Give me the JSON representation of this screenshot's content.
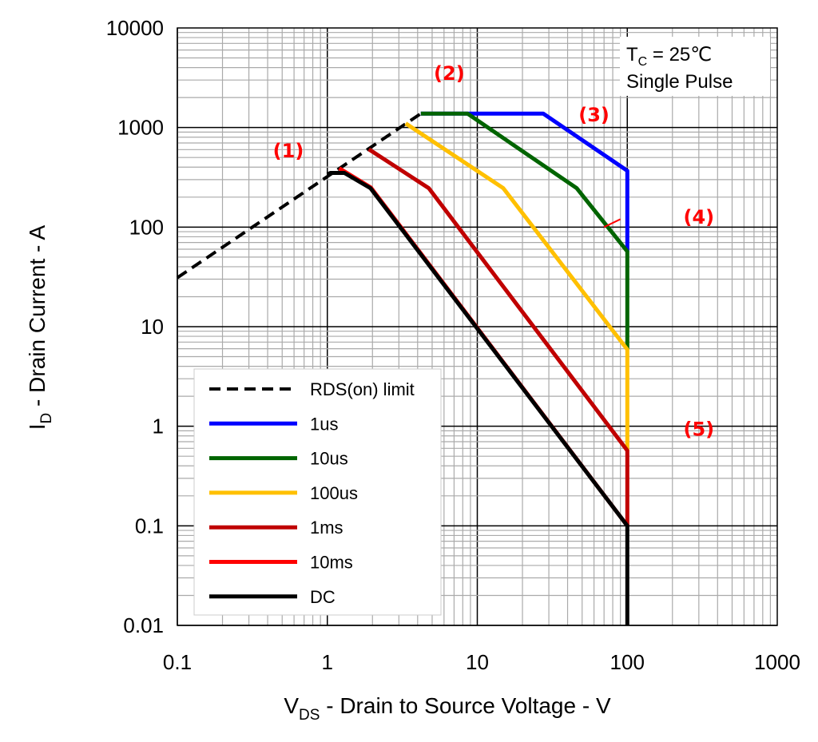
{
  "chart_data": {
    "type": "line",
    "title": "",
    "xlabel": "V_DS - Drain to Source Voltage - V",
    "xlabel_main": "V",
    "xlabel_sub": "DS",
    "xlabel_rest": " - Drain to Source Voltage - V",
    "ylabel_main": "I",
    "ylabel_sub": "D",
    "ylabel_rest": " - Drain Current - A",
    "xscale": "log",
    "yscale": "log",
    "xlim": [
      0.1,
      1000
    ],
    "ylim": [
      0.01,
      10000
    ],
    "xticks": [
      "0.1",
      "1",
      "10",
      "100",
      "1000"
    ],
    "yticks": [
      "0.01",
      "0.1",
      "1",
      "10",
      "100",
      "1000",
      "10000"
    ],
    "grid": true,
    "legend_placement": "bottom-left",
    "conditions": {
      "line1_main": "T",
      "line1_sub": "C",
      "line1_rest": " = 25℃",
      "line2": "Single Pulse"
    },
    "series": [
      {
        "name": "RDS(on) limit",
        "color": "#000000",
        "dashed": true,
        "points": [
          [
            0.1,
            31
          ],
          [
            4.2,
            1380
          ]
        ]
      },
      {
        "name": "1us",
        "color": "#0000ff",
        "points": [
          [
            4.2,
            1380
          ],
          [
            27.5,
            1380
          ],
          [
            100,
            368
          ],
          [
            100,
            57
          ]
        ]
      },
      {
        "name": "10us",
        "color": "#006400",
        "points": [
          [
            4.2,
            1380
          ],
          [
            8.6,
            1380
          ],
          [
            46,
            246
          ],
          [
            100,
            57
          ],
          [
            100,
            5.9
          ]
        ]
      },
      {
        "name": "100us",
        "color": "#ffc000",
        "points": [
          [
            3.33,
            1100
          ],
          [
            14.9,
            246
          ],
          [
            100,
            5.9
          ],
          [
            100,
            0.57
          ]
        ]
      },
      {
        "name": "1ms",
        "color": "#c00000",
        "points": [
          [
            1.89,
            605
          ],
          [
            4.75,
            246
          ],
          [
            100,
            0.57
          ],
          [
            100,
            0.1
          ]
        ]
      },
      {
        "name": "10ms",
        "color": "#ff0000",
        "points": [
          [
            1.2,
            390
          ],
          [
            1.95,
            250
          ],
          [
            100,
            0.1
          ]
        ]
      },
      {
        "name": "DC",
        "color": "#000000",
        "points": [
          [
            1.0,
            337
          ],
          [
            1.05,
            350
          ],
          [
            1.3,
            350
          ],
          [
            1.94,
            246
          ],
          [
            100,
            0.1
          ],
          [
            100,
            0.01
          ]
        ]
      }
    ],
    "annotations": [
      {
        "text": "(1)",
        "x": 0.55,
        "y": 500
      },
      {
        "text": "(2)",
        "x": 6.5,
        "y": 3000
      },
      {
        "text": "(3)",
        "x": 60,
        "y": 1150
      },
      {
        "text": "(4)",
        "x": 300,
        "y": 108
      },
      {
        "text": "(5)",
        "x": 300,
        "y": 0.8
      }
    ],
    "annotation_pointer": {
      "from": [
        240,
        120
      ],
      "to": [
        70,
        100
      ]
    }
  }
}
